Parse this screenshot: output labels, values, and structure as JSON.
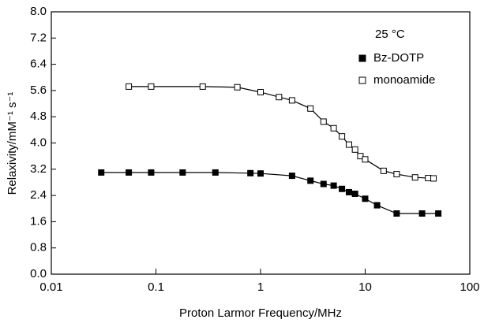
{
  "chart_data": {
    "type": "scatter",
    "xlabel": "Proton Larmor Frequency/MHz",
    "ylabel": "Relaxivity/mM⁻¹ s⁻¹",
    "annotation": "25 °C",
    "xscale": "log",
    "xlim": [
      0.01,
      100
    ],
    "xticks": [
      0.01,
      0.1,
      1,
      10,
      100
    ],
    "ylim": [
      0,
      8
    ],
    "yticks": [
      {
        "value": 0,
        "label": "0.0"
      },
      0.8,
      1.6,
      2.4,
      3.2,
      {
        "value": 4,
        "label": "4.0"
      },
      4.8,
      5.6,
      6.4,
      7.2,
      {
        "value": 8,
        "label": "8.0"
      }
    ],
    "legend": "upper right",
    "series": [
      {
        "name": "Bz-DOTP",
        "color": "#000000",
        "marker": "filled",
        "x": [
          0.03,
          0.055,
          0.09,
          0.18,
          0.37,
          0.8,
          1.0,
          2.0,
          3.0,
          4.0,
          5.0,
          6.0,
          7.0,
          8.0,
          10,
          13,
          20,
          35,
          50
        ],
        "values": [
          3.1,
          3.1,
          3.1,
          3.1,
          3.1,
          3.08,
          3.07,
          3.0,
          2.85,
          2.75,
          2.7,
          2.6,
          2.5,
          2.45,
          2.3,
          2.1,
          1.85,
          1.85,
          1.85
        ]
      },
      {
        "name": "monoamide",
        "color": "#000000",
        "marker": "open",
        "x": [
          0.055,
          0.09,
          0.28,
          0.6,
          1.0,
          1.5,
          2.0,
          3.0,
          4.0,
          5.0,
          6.0,
          7.0,
          8.0,
          9.0,
          10.0,
          15,
          20,
          30,
          40,
          45
        ],
        "values": [
          5.72,
          5.72,
          5.72,
          5.7,
          5.55,
          5.4,
          5.3,
          5.05,
          4.65,
          4.45,
          4.2,
          3.95,
          3.8,
          3.6,
          3.5,
          3.15,
          3.05,
          2.95,
          2.93,
          2.92
        ]
      }
    ]
  }
}
